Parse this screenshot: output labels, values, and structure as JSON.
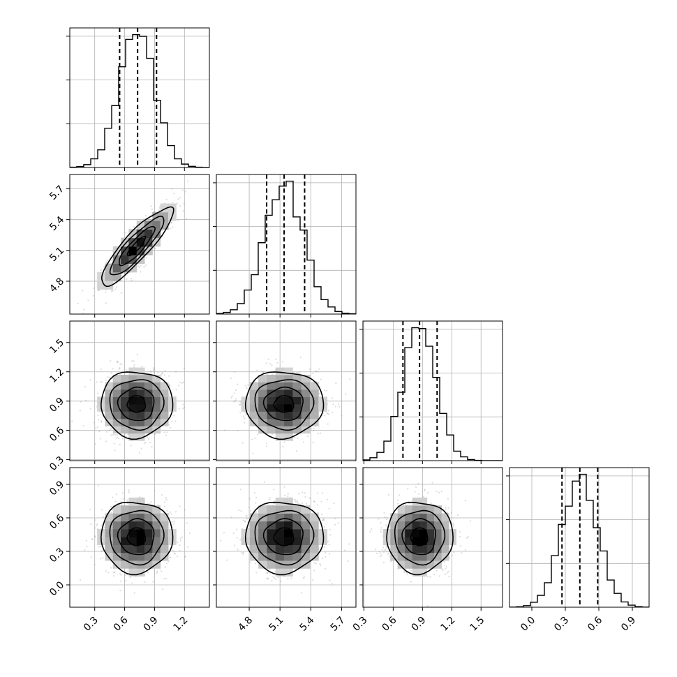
{
  "chart_data": {
    "type": "corner",
    "grid": true,
    "parameters": [
      {
        "index": 0,
        "mean": 0.72,
        "sd": 0.18,
        "range": [
          0.05,
          1.45
        ],
        "ticks": [
          0.3,
          0.6,
          0.9,
          1.2
        ],
        "tick_labels": [
          "0.3",
          "0.6",
          "0.9",
          "1.2"
        ],
        "quantiles": [
          0.55,
          0.73,
          0.92
        ]
      },
      {
        "index": 1,
        "mean": 5.14,
        "sd": 0.19,
        "range": [
          4.48,
          5.84
        ],
        "ticks": [
          4.8,
          5.1,
          5.4,
          5.7
        ],
        "tick_labels": [
          "4.8",
          "5.1",
          "5.4",
          "5.7"
        ],
        "quantiles": [
          4.97,
          5.14,
          5.34
        ]
      },
      {
        "index": 2,
        "mean": 0.87,
        "sd": 0.17,
        "range": [
          0.29,
          1.72
        ],
        "ticks": [
          0.3,
          0.6,
          0.9,
          1.2,
          1.5
        ],
        "tick_labels": [
          "0.3",
          "0.6",
          "0.9",
          "1.2",
          "1.5"
        ],
        "quantiles": [
          0.7,
          0.87,
          1.05
        ]
      },
      {
        "index": 3,
        "mean": 0.43,
        "sd": 0.16,
        "range": [
          -0.2,
          1.05
        ],
        "ticks": [
          0.0,
          0.3,
          0.6,
          0.9
        ],
        "tick_labels": [
          "0.0",
          "0.3",
          "0.6",
          "0.9"
        ],
        "quantiles": [
          0.27,
          0.43,
          0.59
        ]
      }
    ],
    "correlations": [
      {
        "pair": [
          0,
          1
        ],
        "rho": 0.88
      },
      {
        "pair": [
          0,
          2
        ],
        "rho": 0.0
      },
      {
        "pair": [
          1,
          2
        ],
        "rho": 0.0
      },
      {
        "pair": [
          0,
          3
        ],
        "rho": 0.0
      },
      {
        "pair": [
          1,
          3
        ],
        "rho": 0.0
      },
      {
        "pair": [
          2,
          3
        ],
        "rho": 0.0
      }
    ],
    "histogram_bins": 20,
    "contour_levels": [
      0.5,
      1.0,
      1.5,
      2.0
    ]
  }
}
